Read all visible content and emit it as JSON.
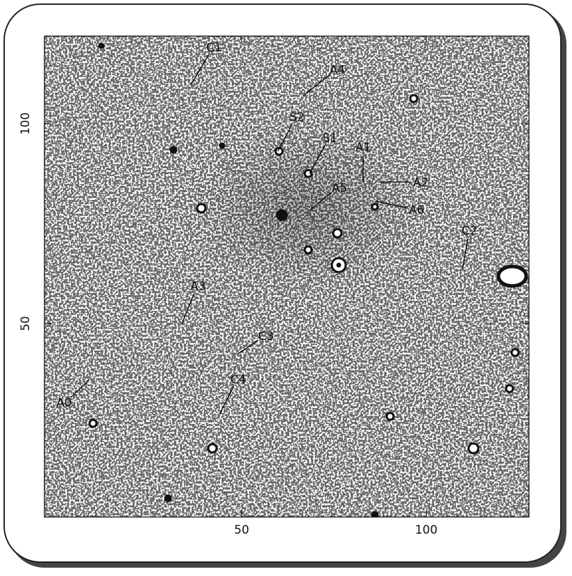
{
  "chart_data": {
    "type": "image",
    "xlim": [
      -3.4,
      127.8
    ],
    "ylim": [
      1.6,
      121.9
    ],
    "xticks": [
      50,
      100
    ],
    "yticks": [
      50,
      100
    ],
    "annotations": [
      {
        "text": "C1",
        "x": 36.3,
        "y": 109.7,
        "label_x": 42.5,
        "label_y": 119.1
      },
      {
        "text": "A4",
        "x": 66.6,
        "y": 106.9,
        "label_x": 75.9,
        "label_y": 113.5
      },
      {
        "text": "S2",
        "x": 59.8,
        "y": 93.1,
        "label_x": 65.0,
        "label_y": 101.7
      },
      {
        "text": "S1",
        "x": 68.4,
        "y": 87.5,
        "label_x": 73.9,
        "label_y": 96.5
      },
      {
        "text": "A1",
        "x": 82.9,
        "y": 85.4,
        "label_x": 82.9,
        "label_y": 94.1
      },
      {
        "text": "A2",
        "x": 87.2,
        "y": 85.4,
        "label_x": 98.5,
        "label_y": 85.4
      },
      {
        "text": "A5",
        "x": 68.6,
        "y": 78.5,
        "label_x": 76.5,
        "label_y": 84.0
      },
      {
        "text": "A6",
        "x": 86.3,
        "y": 80.6,
        "label_x": 97.4,
        "label_y": 78.5
      },
      {
        "text": "C2",
        "x": 109.8,
        "y": 63.5,
        "label_x": 111.7,
        "label_y": 73.3
      },
      {
        "text": "A3",
        "x": 33.8,
        "y": 50.0,
        "label_x": 38.2,
        "label_y": 59.4
      },
      {
        "text": "C3",
        "x": 48.7,
        "y": 42.2,
        "label_x": 56.6,
        "label_y": 46.9
      },
      {
        "text": "C4",
        "x": 44.0,
        "y": 27.3,
        "label_x": 49.1,
        "label_y": 36.1
      },
      {
        "text": "A0",
        "x": 8.6,
        "y": 35.8,
        "label_x": 1.9,
        "label_y": 30.2
      }
    ]
  }
}
